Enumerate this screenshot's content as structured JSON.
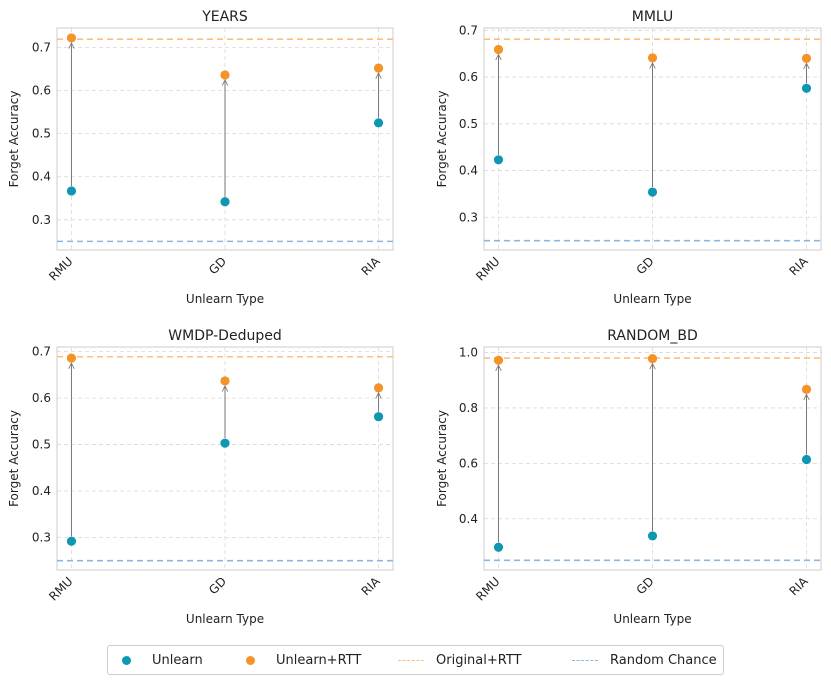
{
  "colors": {
    "unlearn": "#0e97b0",
    "rtt": "#f49327",
    "original_line": "#fbbf82",
    "random_line": "#8cb7de",
    "grid": "#d8d8d8",
    "arrow": "#777777"
  },
  "legend": {
    "unlearn": "Unlearn",
    "rtt": "Unlearn+RTT",
    "original": "Original+RTT",
    "random": "Random Chance"
  },
  "chart_data": [
    {
      "type": "scatter",
      "title": "YEARS",
      "xlabel": "Unlearn Type",
      "ylabel": "Forget Accuracy",
      "categories": [
        "RMU",
        "GD",
        "RIA"
      ],
      "ylim": [
        0.23,
        0.745
      ],
      "yticks": [
        0.3,
        0.4,
        0.5,
        0.6,
        0.7
      ],
      "ytick_labels": [
        "0.3",
        "0.4",
        "0.5",
        "0.6",
        "0.7"
      ],
      "series": [
        {
          "name": "Unlearn",
          "values": [
            0.367,
            0.342,
            0.525
          ]
        },
        {
          "name": "Unlearn+RTT",
          "values": [
            0.722,
            0.636,
            0.652
          ]
        }
      ],
      "original_rtt": 0.719,
      "random_chance": 0.25
    },
    {
      "type": "scatter",
      "title": "MMLU",
      "xlabel": "Unlearn Type",
      "ylabel": "Forget Accuracy",
      "categories": [
        "RMU",
        "GD",
        "RIA"
      ],
      "ylim": [
        0.23,
        0.705
      ],
      "yticks": [
        0.3,
        0.4,
        0.5,
        0.6,
        0.7
      ],
      "ytick_labels": [
        "0.3",
        "0.4",
        "0.5",
        "0.6",
        "0.7"
      ],
      "series": [
        {
          "name": "Unlearn",
          "values": [
            0.423,
            0.354,
            0.576
          ]
        },
        {
          "name": "Unlearn+RTT",
          "values": [
            0.659,
            0.641,
            0.64
          ]
        }
      ],
      "original_rtt": 0.681,
      "random_chance": 0.25
    },
    {
      "type": "scatter",
      "title": "WMDP-Deduped",
      "xlabel": "Unlearn Type",
      "ylabel": "Forget Accuracy",
      "categories": [
        "RMU",
        "GD",
        "RIA"
      ],
      "ylim": [
        0.23,
        0.71
      ],
      "yticks": [
        0.3,
        0.4,
        0.5,
        0.6,
        0.7
      ],
      "ytick_labels": [
        "0.3",
        "0.4",
        "0.5",
        "0.6",
        "0.7"
      ],
      "series": [
        {
          "name": "Unlearn",
          "values": [
            0.292,
            0.503,
            0.56
          ]
        },
        {
          "name": "Unlearn+RTT",
          "values": [
            0.686,
            0.637,
            0.622
          ]
        }
      ],
      "original_rtt": 0.689,
      "random_chance": 0.25
    },
    {
      "type": "scatter",
      "title": "RANDOM_BD",
      "xlabel": "Unlearn Type",
      "ylabel": "Forget Accuracy",
      "categories": [
        "RMU",
        "GD",
        "RIA"
      ],
      "ylim": [
        0.215,
        1.02
      ],
      "yticks": [
        0.4,
        0.6,
        0.8,
        1.0
      ],
      "ytick_labels": [
        "0.4",
        "0.6",
        "0.8",
        "1.0"
      ],
      "series": [
        {
          "name": "Unlearn",
          "values": [
            0.297,
            0.338,
            0.614
          ]
        },
        {
          "name": "Unlearn+RTT",
          "values": [
            0.972,
            0.978,
            0.867
          ]
        }
      ],
      "original_rtt": 0.98,
      "random_chance": 0.25
    }
  ]
}
